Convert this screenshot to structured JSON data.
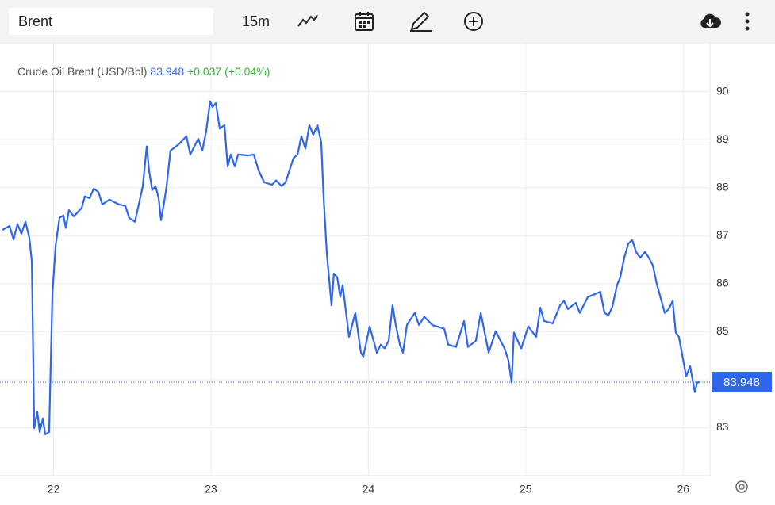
{
  "toolbar": {
    "symbol": "Brent",
    "interval": "15m"
  },
  "chart_data": {
    "type": "line",
    "title": "Crude Oil Brent (USD/Bbl)",
    "last_price": 83.948,
    "change": "+0.037",
    "change_pct": "(+0.04%)",
    "color": "#2f66ee",
    "grid": true,
    "xlim": [
      21.66,
      26.17
    ],
    "xticks": [
      22,
      23,
      24,
      25,
      26
    ],
    "ylim": [
      82,
      91
    ],
    "yticks": [
      83,
      84,
      85,
      86,
      87,
      88,
      89,
      90
    ],
    "x": [
      21.675,
      21.72,
      21.746,
      21.771,
      21.796,
      21.821,
      21.846,
      21.862,
      21.877,
      21.897,
      21.912,
      21.932,
      21.947,
      21.972,
      21.993,
      22.013,
      22.038,
      22.063,
      22.078,
      22.098,
      22.129,
      22.179,
      22.199,
      22.229,
      22.255,
      22.285,
      22.31,
      22.355,
      22.416,
      22.456,
      22.481,
      22.517,
      22.537,
      22.567,
      22.592,
      22.607,
      22.627,
      22.648,
      22.668,
      22.683,
      22.703,
      22.718,
      22.743,
      22.794,
      22.844,
      22.869,
      22.92,
      22.945,
      22.97,
      22.995,
      23.01,
      23.031,
      23.056,
      23.086,
      23.106,
      23.126,
      23.152,
      23.172,
      23.237,
      23.272,
      23.303,
      23.338,
      23.388,
      23.414,
      23.449,
      23.474,
      23.524,
      23.55,
      23.575,
      23.6,
      23.625,
      23.65,
      23.676,
      23.701,
      23.716,
      23.736,
      23.766,
      23.781,
      23.802,
      23.822,
      23.837,
      23.877,
      23.917,
      23.953,
      23.968,
      24.008,
      24.054,
      24.079,
      24.104,
      24.129,
      24.154,
      24.174,
      24.2,
      24.22,
      24.245,
      24.295,
      24.321,
      24.356,
      24.406,
      24.482,
      24.507,
      24.557,
      24.608,
      24.633,
      24.683,
      24.714,
      24.739,
      24.764,
      24.809,
      24.865,
      24.89,
      24.91,
      24.925,
      24.971,
      25.016,
      25.066,
      25.092,
      25.117,
      25.172,
      25.218,
      25.243,
      25.268,
      25.318,
      25.343,
      25.394,
      25.474,
      25.5,
      25.525,
      25.55,
      25.58,
      25.6,
      25.626,
      25.651,
      25.676,
      25.701,
      25.727,
      25.757,
      25.782,
      25.807,
      25.832,
      25.883,
      25.908,
      25.933,
      25.953,
      25.973,
      26.019,
      26.044,
      26.074,
      26.089,
      26.104
    ],
    "values": [
      87.12,
      87.2,
      86.92,
      87.24,
      87.04,
      87.29,
      86.96,
      86.46,
      82.99,
      83.33,
      82.91,
      83.19,
      82.86,
      82.91,
      85.8,
      86.79,
      87.37,
      87.42,
      87.16,
      87.53,
      87.4,
      87.58,
      87.82,
      87.78,
      87.98,
      87.91,
      87.65,
      87.75,
      87.65,
      87.62,
      87.37,
      87.29,
      87.58,
      88.03,
      88.86,
      88.36,
      87.95,
      88.03,
      87.78,
      87.32,
      87.7,
      88.03,
      88.77,
      88.9,
      89.07,
      88.69,
      89.02,
      88.77,
      89.18,
      89.8,
      89.68,
      89.76,
      89.23,
      89.3,
      88.44,
      88.69,
      88.44,
      88.69,
      88.67,
      88.69,
      88.36,
      88.11,
      88.06,
      88.15,
      88.03,
      88.11,
      88.61,
      88.69,
      89.07,
      88.81,
      89.3,
      89.1,
      89.3,
      88.94,
      87.78,
      86.63,
      85.55,
      86.21,
      86.13,
      85.72,
      85.97,
      84.89,
      85.39,
      84.56,
      84.48,
      85.11,
      84.56,
      84.73,
      84.65,
      84.81,
      85.55,
      85.14,
      84.73,
      84.56,
      85.14,
      85.39,
      85.14,
      85.31,
      85.14,
      85.06,
      84.73,
      84.68,
      85.22,
      84.68,
      84.81,
      85.39,
      84.98,
      84.56,
      85.01,
      84.65,
      84.4,
      83.94,
      84.98,
      84.65,
      85.11,
      84.89,
      85.5,
      85.22,
      85.17,
      85.55,
      85.64,
      85.47,
      85.6,
      85.39,
      85.72,
      85.83,
      85.39,
      85.34,
      85.52,
      85.97,
      86.13,
      86.54,
      86.83,
      86.91,
      86.66,
      86.54,
      86.66,
      86.54,
      86.38,
      86.0,
      85.39,
      85.47,
      85.64,
      84.98,
      84.89,
      84.07,
      84.28,
      83.74,
      83.94,
      83.948
    ]
  }
}
